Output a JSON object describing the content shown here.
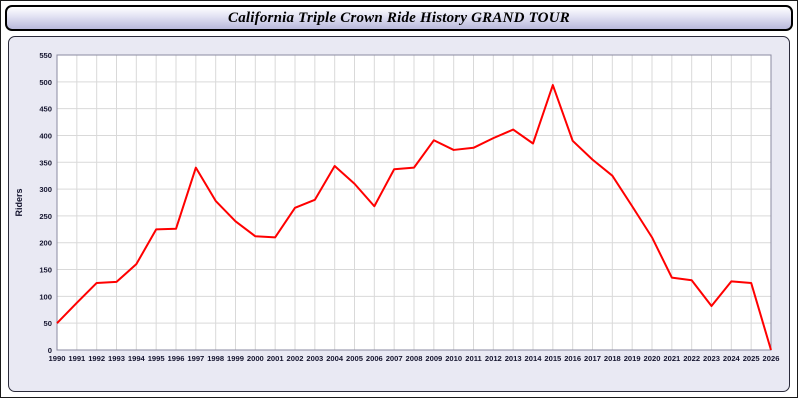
{
  "title": "California Triple Crown Ride History GRAND TOUR",
  "chart_data": {
    "type": "line",
    "title": "California Triple Crown Ride History GRAND TOUR",
    "xlabel": "",
    "ylabel": "Riders",
    "ylim": [
      0,
      550
    ],
    "ytick_step": 50,
    "grid": true,
    "legend_position": "none",
    "line_color": "#ff0000",
    "x": [
      1990,
      1991,
      1992,
      1993,
      1994,
      1995,
      1996,
      1997,
      1998,
      1999,
      2000,
      2001,
      2002,
      2003,
      2004,
      2005,
      2006,
      2007,
      2008,
      2009,
      2010,
      2011,
      2012,
      2013,
      2014,
      2015,
      2016,
      2017,
      2018,
      2019,
      2020,
      2021,
      2022,
      2023,
      2024,
      2025,
      2026
    ],
    "values": [
      50,
      88,
      125,
      127,
      160,
      225,
      226,
      340,
      278,
      240,
      212,
      210,
      265,
      280,
      343,
      310,
      268,
      337,
      340,
      391,
      373,
      377,
      395,
      411,
      385,
      494,
      390,
      355,
      325,
      268,
      210,
      135,
      130,
      82,
      128,
      125,
      0
    ]
  },
  "colors": {
    "line": "#ff0000",
    "grid": "#d9d9d9",
    "plot_background": "#ffffff",
    "panel_background": "#e9e9f3",
    "tick_text": "#14142e"
  }
}
